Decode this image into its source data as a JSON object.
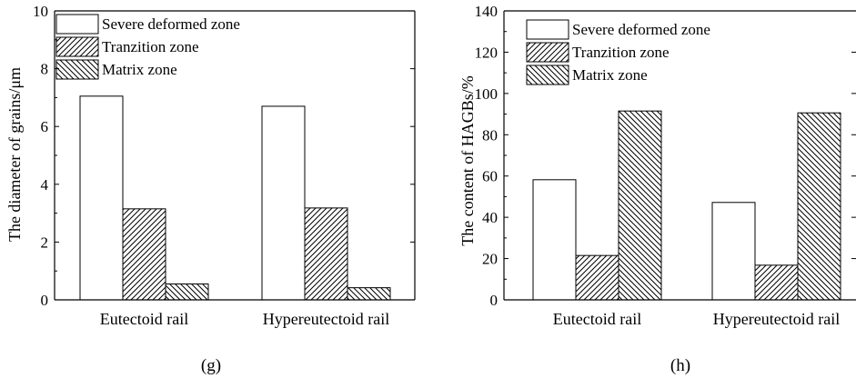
{
  "chart_data": [
    {
      "type": "bar",
      "panel_label": "(g)",
      "ylabel": "The diameter of grains/μm",
      "xlabel": "",
      "ylim": [
        0,
        10
      ],
      "yticks": [
        "0",
        "2",
        "4",
        "6",
        "8",
        "10"
      ],
      "categories": [
        "Eutectoid rail",
        "Hypereutectoid rail"
      ],
      "legend_placement": "top-left",
      "series": [
        {
          "name": "Severe deformed zone",
          "pattern": "none",
          "values": [
            7.05,
            6.7
          ]
        },
        {
          "name": "Tranzition zone",
          "pattern": "forward-hatch",
          "values": [
            3.15,
            3.18
          ]
        },
        {
          "name": "Matrix zone",
          "pattern": "back-hatch",
          "values": [
            0.55,
            0.42
          ]
        }
      ]
    },
    {
      "type": "bar",
      "panel_label": "(h)",
      "ylabel": "The content of HAGBs/%",
      "xlabel": "",
      "ylim": [
        0,
        140
      ],
      "yticks": [
        "0",
        "20",
        "40",
        "60",
        "80",
        "100",
        "120",
        "140"
      ],
      "categories": [
        "Eutectoid rail",
        "Hypereutectoid rail"
      ],
      "legend_placement": "top-left",
      "series": [
        {
          "name": "Severe deformed zone",
          "pattern": "none",
          "values": [
            58.2,
            47.2
          ]
        },
        {
          "name": "Tranzition zone",
          "pattern": "forward-hatch",
          "values": [
            21.5,
            16.8
          ]
        },
        {
          "name": "Matrix zone",
          "pattern": "back-hatch",
          "values": [
            91.5,
            90.6
          ]
        }
      ]
    }
  ]
}
